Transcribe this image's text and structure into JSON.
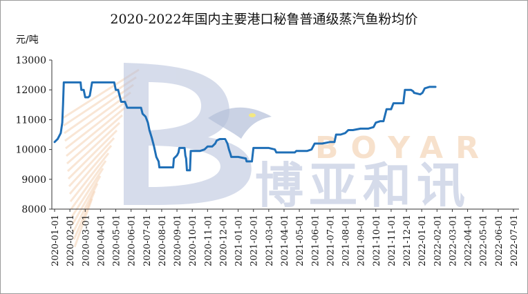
{
  "watermark": {
    "brand_latin": "BOYAR",
    "brand_cn": "博亚和讯",
    "colors": {
      "logo_blue": "#a7b5d3",
      "logo_orange": "#f3c9a6",
      "text_latin": "#f6dcc4",
      "text_cn": "#c2cbe0"
    }
  },
  "chart_data": {
    "type": "line",
    "title": "2020-2022年国内主要港口秘鲁普通级蒸汽鱼粉均价",
    "ylabel": "元/吨",
    "xlabel": "",
    "ylim": [
      8000,
      13000
    ],
    "yticks": [
      "8000",
      "9000",
      "10000",
      "11000",
      "12000",
      "13000"
    ],
    "x_categories": [
      "2020-01-01",
      "2020-02-01",
      "2020-03-01",
      "2020-04-01",
      "2020-05-01",
      "2020-06-01",
      "2020-07-01",
      "2020-08-01",
      "2020-09-01",
      "2020-10-01",
      "2020-11-01",
      "2020-12-01",
      "2021-01-01",
      "2021-02-01",
      "2021-03-01",
      "2021-04-01",
      "2021-05-01",
      "2021-06-01",
      "2021-07-01",
      "2021-08-01",
      "2021-09-01",
      "2021-10-01",
      "2021-11-01",
      "2021-12-01",
      "2022-01-01",
      "2022-02-01",
      "2022-03-01",
      "2022-04-01",
      "2022-05-01",
      "2022-06-01",
      "2022-07-01"
    ],
    "grid": false,
    "legend": "none",
    "line_color": "#1f6fb7",
    "series": [
      {
        "points": [
          [
            0.0,
            10250
          ],
          [
            0.1,
            10300
          ],
          [
            0.2,
            10350
          ],
          [
            0.4,
            10550
          ],
          [
            0.5,
            10900
          ],
          [
            0.55,
            11500
          ],
          [
            0.6,
            12250
          ],
          [
            1.0,
            12250
          ],
          [
            1.5,
            12250
          ],
          [
            1.7,
            12250
          ],
          [
            1.75,
            12000
          ],
          [
            1.9,
            12000
          ],
          [
            2.0,
            11750
          ],
          [
            2.2,
            11750
          ],
          [
            2.3,
            11800
          ],
          [
            2.45,
            12250
          ],
          [
            3.0,
            12250
          ],
          [
            3.5,
            12250
          ],
          [
            3.9,
            12250
          ],
          [
            4.0,
            12000
          ],
          [
            4.15,
            12000
          ],
          [
            4.25,
            11800
          ],
          [
            4.35,
            11600
          ],
          [
            4.6,
            11600
          ],
          [
            4.75,
            11400
          ],
          [
            5.0,
            11400
          ],
          [
            5.5,
            11400
          ],
          [
            5.65,
            11400
          ],
          [
            5.75,
            11200
          ],
          [
            5.95,
            11100
          ],
          [
            6.1,
            10900
          ],
          [
            6.2,
            10650
          ],
          [
            6.35,
            10400
          ],
          [
            6.5,
            10100
          ],
          [
            6.65,
            9750
          ],
          [
            6.8,
            9600
          ],
          [
            6.85,
            9400
          ],
          [
            7.0,
            9400
          ],
          [
            7.5,
            9400
          ],
          [
            7.75,
            9400
          ],
          [
            7.8,
            9700
          ],
          [
            8.0,
            9800
          ],
          [
            8.1,
            9900
          ],
          [
            8.15,
            10050
          ],
          [
            8.5,
            10050
          ],
          [
            8.55,
            9800
          ],
          [
            8.6,
            9700
          ],
          [
            8.65,
            9300
          ],
          [
            8.85,
            9300
          ],
          [
            8.9,
            9950
          ],
          [
            9.0,
            9950
          ],
          [
            9.5,
            9950
          ],
          [
            9.8,
            10000
          ],
          [
            10.0,
            10100
          ],
          [
            10.3,
            10100
          ],
          [
            10.5,
            10200
          ],
          [
            10.6,
            10300
          ],
          [
            10.8,
            10350
          ],
          [
            11.15,
            10350
          ],
          [
            11.3,
            10200
          ],
          [
            11.4,
            10000
          ],
          [
            11.5,
            9850
          ],
          [
            11.55,
            9750
          ],
          [
            12.0,
            9750
          ],
          [
            12.5,
            9700
          ],
          [
            12.55,
            9600
          ],
          [
            12.9,
            9600
          ],
          [
            13.0,
            10050
          ],
          [
            13.5,
            10050
          ],
          [
            14.0,
            10050
          ],
          [
            14.4,
            10000
          ],
          [
            14.5,
            9900
          ],
          [
            15.0,
            9900
          ],
          [
            15.5,
            9900
          ],
          [
            15.7,
            9900
          ],
          [
            15.8,
            9950
          ],
          [
            16.2,
            9950
          ],
          [
            16.5,
            9950
          ],
          [
            16.8,
            10000
          ],
          [
            17.0,
            10200
          ],
          [
            17.5,
            10200
          ],
          [
            18.0,
            10250
          ],
          [
            18.3,
            10250
          ],
          [
            18.4,
            10500
          ],
          [
            18.7,
            10500
          ],
          [
            19.0,
            10550
          ],
          [
            19.2,
            10650
          ],
          [
            19.5,
            10650
          ],
          [
            20.0,
            10700
          ],
          [
            20.5,
            10700
          ],
          [
            20.85,
            10750
          ],
          [
            21.0,
            10900
          ],
          [
            21.3,
            10950
          ],
          [
            21.5,
            10950
          ],
          [
            21.7,
            11350
          ],
          [
            22.0,
            11350
          ],
          [
            22.15,
            11550
          ],
          [
            22.5,
            11550
          ],
          [
            22.8,
            11550
          ],
          [
            22.9,
            12000
          ],
          [
            23.3,
            12000
          ],
          [
            23.45,
            11950
          ],
          [
            23.5,
            11900
          ],
          [
            23.9,
            11850
          ],
          [
            24.05,
            11900
          ],
          [
            24.2,
            12050
          ],
          [
            24.5,
            12100
          ],
          [
            24.9,
            12100
          ]
        ]
      }
    ]
  }
}
